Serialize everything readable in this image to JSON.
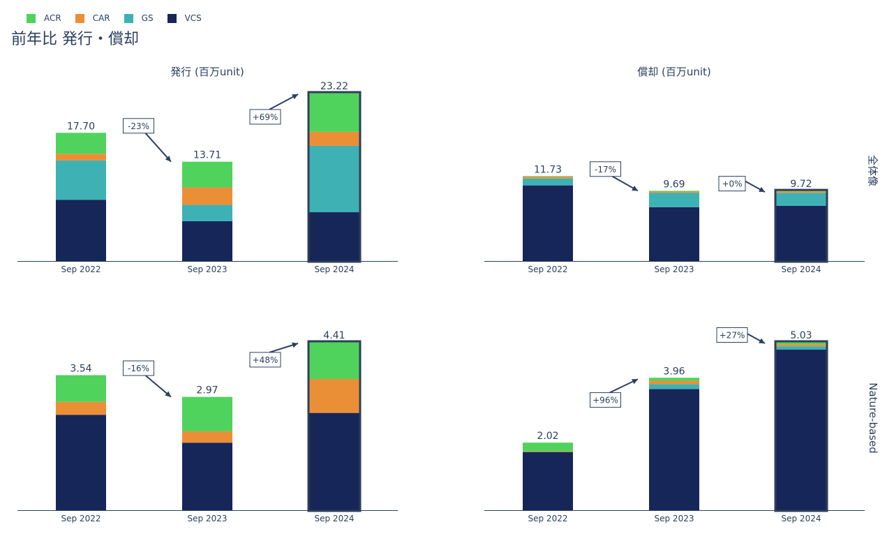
{
  "title": "前年比 発行・償却",
  "colors": {
    "ACR": "#4fd35c",
    "CAR": "#eb8f37",
    "GS": "#3eb1b5",
    "VCS": "#172659",
    "axis": "#2a3f5f",
    "highlight": "#2e3f58"
  },
  "legend": [
    {
      "name": "ACR",
      "color": "#4fd35c"
    },
    {
      "name": "CAR",
      "color": "#eb8f37"
    },
    {
      "name": "GS",
      "color": "#3eb1b5"
    },
    {
      "name": "VCS",
      "color": "#172659"
    }
  ],
  "col_titles": [
    "発行 (百万unit)",
    "償却 (百万unit)"
  ],
  "row_titles": [
    "全体像",
    "Nature-based"
  ],
  "chart_data": [
    {
      "type": "bar",
      "stacked": true,
      "panel": "issuance-total",
      "categories": [
        "Sep 2022",
        "Sep 2023",
        "Sep 2024"
      ],
      "series": [
        {
          "name": "VCS",
          "values": [
            8.46,
            5.5,
            6.74
          ]
        },
        {
          "name": "GS",
          "values": [
            5.43,
            2.25,
            9.16
          ]
        },
        {
          "name": "CAR",
          "values": [
            0.92,
            2.42,
            1.94
          ]
        },
        {
          "name": "ACR",
          "values": [
            2.89,
            3.54,
            5.38
          ]
        }
      ],
      "totals": [
        "17.70",
        "13.71",
        "23.22"
      ],
      "changes": [
        "-23%",
        "+69%"
      ],
      "ylim": [
        0,
        23.22
      ]
    },
    {
      "type": "bar",
      "stacked": true,
      "panel": "retirement-total",
      "categories": [
        "Sep 2022",
        "Sep 2023",
        "Sep 2024"
      ],
      "series": [
        {
          "name": "VCS",
          "values": [
            10.44,
            7.43,
            7.62
          ]
        },
        {
          "name": "GS",
          "values": [
            0.95,
            2.0,
            1.8
          ]
        },
        {
          "name": "CAR",
          "values": [
            0.25,
            0.16,
            0.2
          ]
        },
        {
          "name": "ACR",
          "values": [
            0.09,
            0.1,
            0.1
          ]
        }
      ],
      "totals": [
        "11.73",
        "9.69",
        "9.72"
      ],
      "changes": [
        "-17%",
        "+0%"
      ],
      "ylim": [
        0,
        23.22
      ]
    },
    {
      "type": "bar",
      "stacked": true,
      "panel": "issuance-nature",
      "categories": [
        "Sep 2022",
        "Sep 2023",
        "Sep 2024"
      ],
      "series": [
        {
          "name": "VCS",
          "values": [
            2.5,
            1.77,
            2.55
          ]
        },
        {
          "name": "GS",
          "values": [
            0,
            0,
            0
          ]
        },
        {
          "name": "CAR",
          "values": [
            0.34,
            0.3,
            0.89
          ]
        },
        {
          "name": "ACR",
          "values": [
            0.7,
            0.9,
            0.97
          ]
        }
      ],
      "totals": [
        "3.54",
        "2.97",
        "4.41"
      ],
      "changes": [
        "-16%",
        "+48%"
      ],
      "ylim": [
        0,
        4.41
      ]
    },
    {
      "type": "bar",
      "stacked": true,
      "panel": "retirement-nature",
      "categories": [
        "Sep 2022",
        "Sep 2023",
        "Sep 2024"
      ],
      "series": [
        {
          "name": "VCS",
          "values": [
            1.74,
            3.62,
            4.8
          ]
        },
        {
          "name": "GS",
          "values": [
            0,
            0.15,
            0.1
          ]
        },
        {
          "name": "CAR",
          "values": [
            0.02,
            0.1,
            0.06
          ]
        },
        {
          "name": "ACR",
          "values": [
            0.26,
            0.09,
            0.07
          ]
        }
      ],
      "totals": [
        "2.02",
        "3.96",
        "5.03"
      ],
      "changes": [
        "+96%",
        "+27%"
      ],
      "ylim": [
        0,
        5.03
      ]
    }
  ]
}
